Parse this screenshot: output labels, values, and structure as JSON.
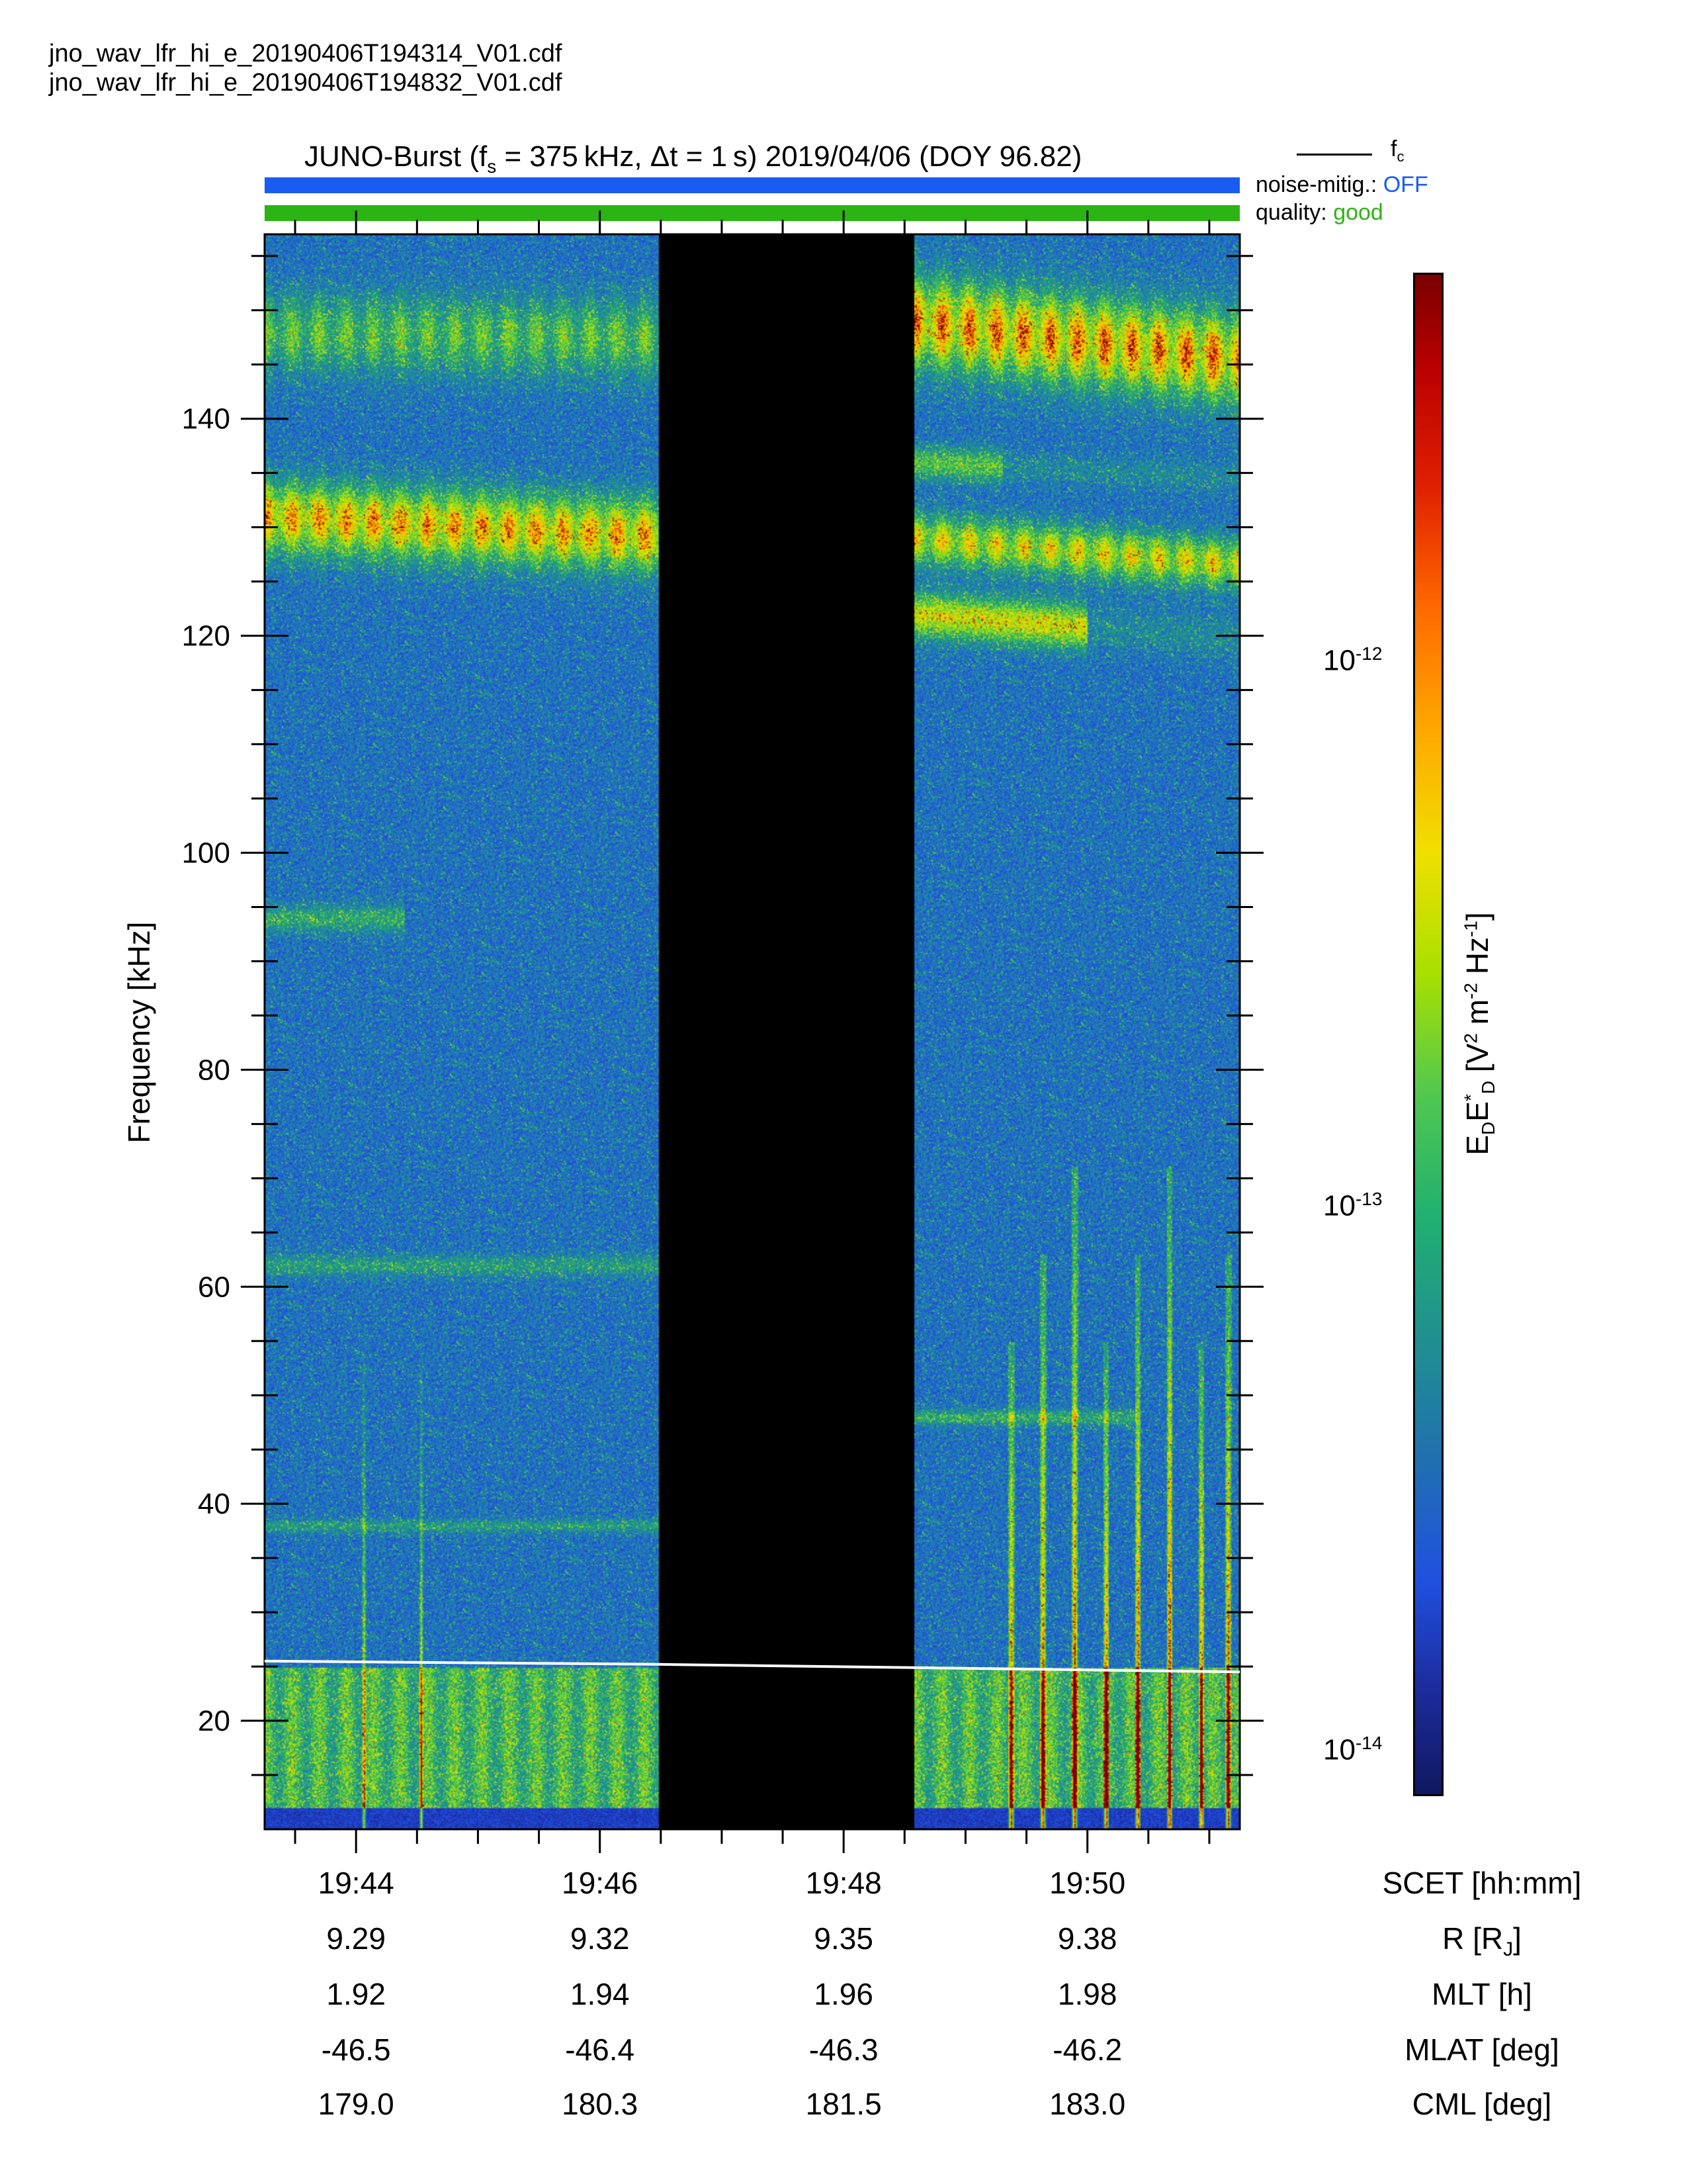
{
  "files": [
    "jno_wav_lfr_hi_e_20190406T194314_V01.cdf",
    "jno_wav_lfr_hi_e_20190406T194832_V01.cdf"
  ],
  "title": {
    "prefix": "JUNO-Burst (f",
    "sub": "s",
    "suffix": " = 375 kHz, Δt = 1 s)  2019/04/06 (DOY 96.82)"
  },
  "legend": {
    "fc_main": "f",
    "fc_sub": "c"
  },
  "status": {
    "noise_label": "noise-mitig.:",
    "noise_value": "OFF",
    "noise_color": "#1a5cf0",
    "quality_label": "quality:",
    "quality_value": "good",
    "quality_color": "#2cb414"
  },
  "colorbar": {
    "tick_base": "10",
    "ticks": [
      "-12",
      "-13",
      "-14"
    ],
    "title_E1": "E",
    "title_D1": "D",
    "title_E2": "E",
    "title_D2": "D",
    "title_star": "*",
    "title_units_open": " [V",
    "title_sq": "2",
    "title_m": " m",
    "title_m_exp": "-2",
    "title_hz": " Hz",
    "title_hz_exp": "-1",
    "title_close": "]"
  },
  "ephemeris": {
    "rows": [
      {
        "name": "SCET [hh:mm]",
        "values": [
          "19:44",
          "19:46",
          "19:48",
          "19:50"
        ]
      },
      {
        "name": "R [R",
        "name_sub": "J",
        "name_end": "]",
        "values": [
          "9.29",
          "9.32",
          "9.35",
          "9.38"
        ]
      },
      {
        "name": "MLT [h]",
        "values": [
          "1.92",
          "1.94",
          "1.96",
          "1.98"
        ]
      },
      {
        "name": "MLAT [deg]",
        "values": [
          "-46.5",
          "-46.4",
          "-46.3",
          "-46.2"
        ]
      },
      {
        "name": "CML [deg]",
        "values": [
          "179.0",
          "180.3",
          "181.5",
          "183.0"
        ]
      }
    ]
  },
  "chart_data": {
    "type": "heatmap",
    "title": "JUNO-Burst (fs = 375 kHz, Δt = 1 s)  2019/04/06 (DOY 96.82)",
    "ylabel": "Frequency [kHz]",
    "xlabel": "SCET [hh:mm]",
    "ylim": [
      10,
      157
    ],
    "yticks": [
      20,
      40,
      60,
      80,
      100,
      120,
      140
    ],
    "ytick_labels": [
      "20",
      "40",
      "60",
      "80",
      "100",
      "120",
      "140"
    ],
    "xlim_minutes": [
      43.25,
      51.25
    ],
    "xticks_minutes": [
      44,
      46,
      48,
      50
    ],
    "xtick_labels": [
      "19:44",
      "19:46",
      "19:48",
      "19:50"
    ],
    "colorbar_label": "EDED* [V^2 m^-2 Hz^-1]",
    "colorbar_scale": "log",
    "colorbar_range": [
      8.5e-15,
      4.2e-12
    ],
    "data_gap_minutes": [
      46.48,
      48.57
    ],
    "fc_line": {
      "name": "fc",
      "x": [
        43.25,
        46.48,
        48.57,
        51.25
      ],
      "y": [
        25.5,
        25.2,
        24.9,
        24.5
      ]
    },
    "emission_bands_khz": [
      {
        "segment": "before_gap",
        "centers": [
          148,
          131,
          94,
          62,
          38,
          15
        ]
      },
      {
        "segment": "after_gap",
        "centers": [
          148,
          136,
          129,
          122,
          48,
          15
        ]
      }
    ]
  }
}
